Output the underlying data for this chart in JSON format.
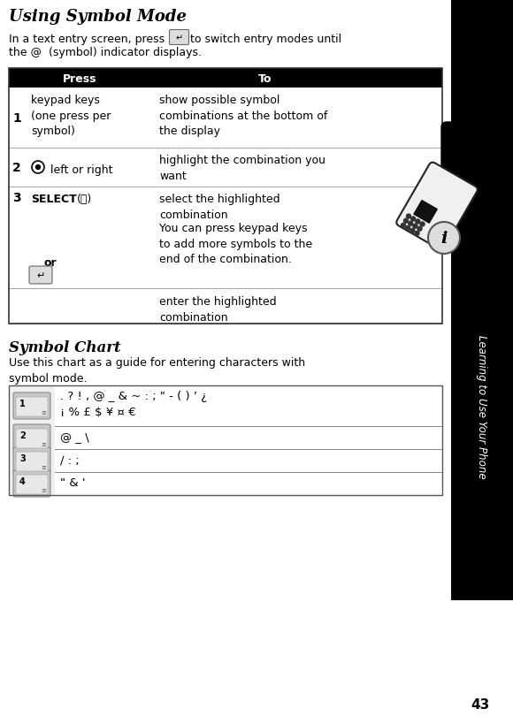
{
  "title": "Using Symbol Mode",
  "page_number": "43",
  "sidebar_text": "Learning to Use Your Phone",
  "table_header": [
    "Press",
    "To"
  ],
  "bg_color": "#ffffff",
  "header_bg": "#000000",
  "header_fg": "#ffffff",
  "sidebar_bg": "#000000",
  "sidebar_fg": "#ffffff",
  "line_color": "#aaaaaa",
  "symbol_chart_title": "Symbol Chart",
  "sym1": ". ? ! , @ _ & ~ : ; \" - ( ) ’ ¿",
  "sym1b": "¡ % £ $ ¥ ¤ €",
  "sym2": "@ _ \\",
  "sym3": "/ : ;",
  "sym4": "\" & '"
}
